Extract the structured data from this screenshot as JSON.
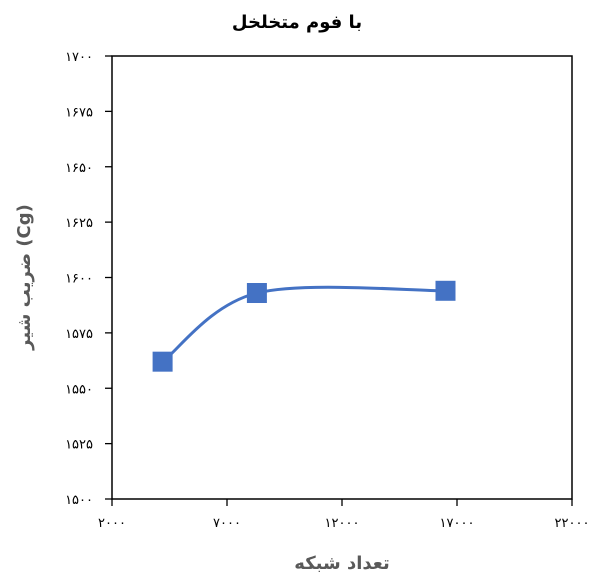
{
  "chart_data": {
    "type": "line",
    "title": "با فوم متخلخل",
    "xlabel": "تعداد شبکه",
    "ylabel": "ضریب شیر (Cg)",
    "xlim": [
      2000,
      22000
    ],
    "ylim": [
      1500,
      1700
    ],
    "x_ticks": [
      2000,
      7000,
      12000,
      17000,
      22000
    ],
    "y_ticks": [
      1500,
      1525,
      1550,
      1575,
      1600,
      1625,
      1650,
      1675,
      1700
    ],
    "x_tick_labels": [
      "۲۰۰۰",
      "۷۰۰۰",
      "۱۲۰۰۰",
      "۱۷۰۰۰",
      "۲۲۰۰۰"
    ],
    "y_tick_labels": [
      "۱۵۰۰",
      "۱۵۲۵",
      "۱۵۵۰",
      "۱۵۷۵",
      "۱۶۰۰",
      "۱۶۲۵",
      "۱۶۵۰",
      "۱۶۷۵",
      "۱۷۰۰"
    ],
    "grid": false,
    "smooth": true,
    "series": [
      {
        "x": [
          4200,
          8300,
          16500
        ],
        "y": [
          1562,
          1593,
          1594
        ]
      }
    ],
    "colors": {
      "series": "#4472C4",
      "axis": "#000000",
      "axis_label": "#595959"
    }
  }
}
